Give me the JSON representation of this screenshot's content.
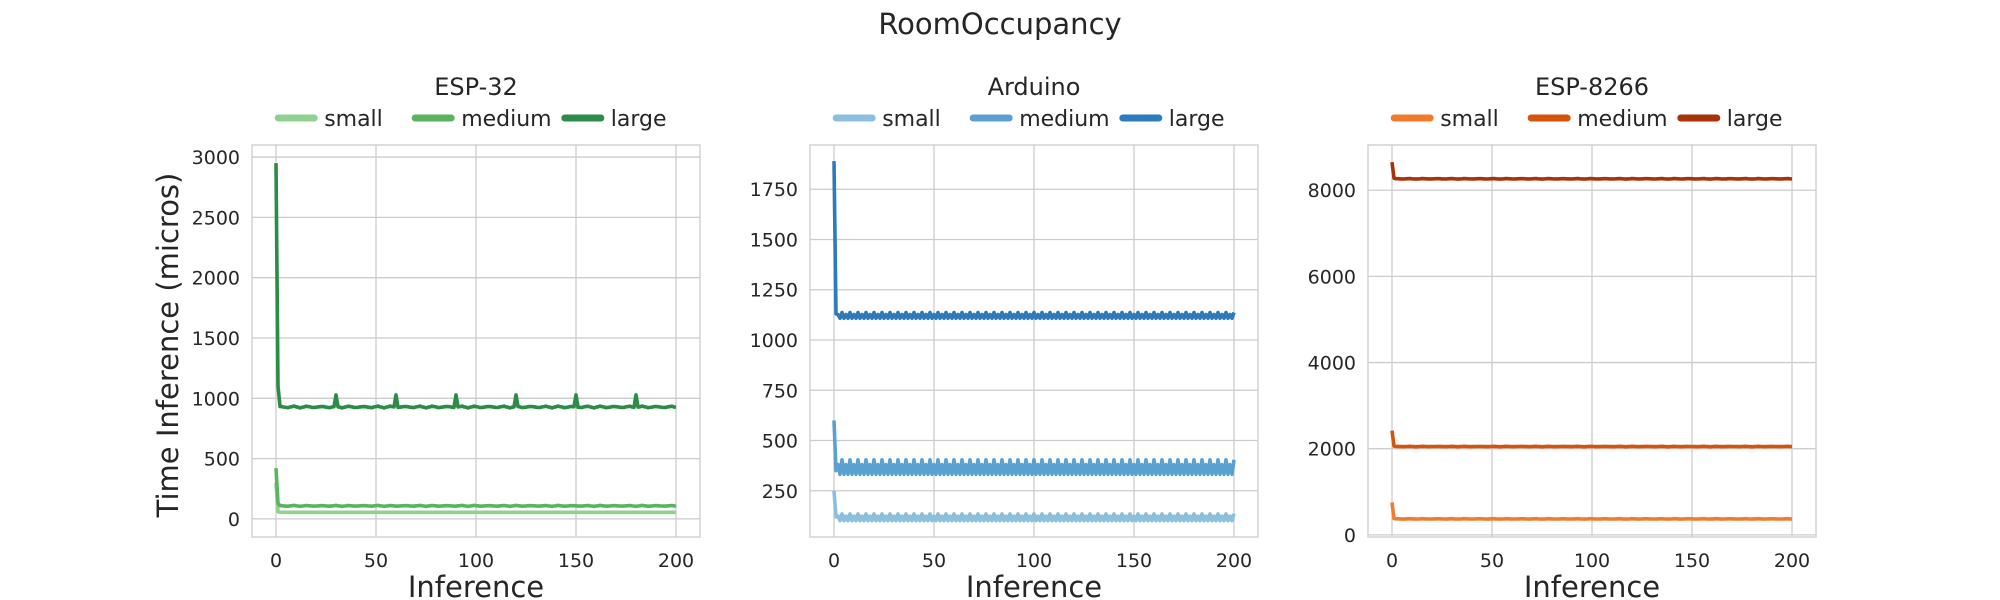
{
  "figure": {
    "suptitle": "RoomOccupancy",
    "ylabel": "Time Inference (micros)"
  },
  "chart_data": [
    {
      "type": "line",
      "title": "ESP-32",
      "xlabel": "Inference",
      "ylabel": "Time Inference (micros)",
      "xlim": [
        -12,
        212
      ],
      "ylim": [
        -150,
        3100
      ],
      "xticks": [
        0,
        50,
        100,
        150,
        200
      ],
      "yticks": [
        0,
        500,
        1000,
        1500,
        2000,
        2500,
        3000
      ],
      "grid": true,
      "legend": "top-center",
      "series": [
        {
          "name": "small",
          "color": "#8fd18f",
          "first": [
            300,
            60
          ],
          "base": 55,
          "amp": 0,
          "pattern": "flat",
          "spike_every": 0,
          "spike_height": 0
        },
        {
          "name": "medium",
          "color": "#5ab45f",
          "first": [
            420,
            130
          ],
          "base": 108,
          "amp": 4,
          "pattern": "wiggle",
          "spike_every": 0,
          "spike_height": 0
        },
        {
          "name": "large",
          "color": "#2a8c47",
          "first": [
            2950,
            1100
          ],
          "base": 928,
          "amp": 8,
          "pattern": "wiggle",
          "spike_every": 30,
          "spike_height": 100
        }
      ]
    },
    {
      "type": "line",
      "title": "Arduino",
      "xlabel": "Inference",
      "ylabel": "",
      "xlim": [
        -12,
        212
      ],
      "ylim": [
        20,
        1970
      ],
      "xticks": [
        0,
        50,
        100,
        150,
        200
      ],
      "yticks": [
        250,
        500,
        750,
        1000,
        1250,
        1500,
        1750
      ],
      "grid": true,
      "legend": "top-center",
      "series": [
        {
          "name": "small",
          "color": "#8bbfdf",
          "first": [
            250,
            120
          ],
          "base": 110,
          "amp": 14,
          "pattern": "zigzag",
          "spike_every": 0,
          "spike_height": 0
        },
        {
          "name": "medium",
          "color": "#5aa0d0",
          "first": [
            600,
            350
          ],
          "base": 350,
          "amp": 30,
          "pattern": "zigzag",
          "spike_every": 0,
          "spike_height": 0
        },
        {
          "name": "large",
          "color": "#2d7bbd",
          "first": [
            1890,
            1130
          ],
          "base": 1115,
          "amp": 12,
          "pattern": "zigzag",
          "spike_every": 0,
          "spike_height": 0
        }
      ]
    },
    {
      "type": "line",
      "title": "ESP-8266",
      "xlabel": "Inference",
      "ylabel": "",
      "xlim": [
        -12,
        212
      ],
      "ylim": [
        -50,
        9050
      ],
      "xticks": [
        0,
        50,
        100,
        150,
        200
      ],
      "yticks": [
        0,
        2000,
        4000,
        6000,
        8000
      ],
      "grid": true,
      "legend": "top-center",
      "series": [
        {
          "name": "small",
          "color": "#f07b2c",
          "first": [
            750,
            380
          ],
          "base": 370,
          "amp": 5,
          "pattern": "wiggle",
          "spike_every": 0,
          "spike_height": 0
        },
        {
          "name": "medium",
          "color": "#d6530d",
          "first": [
            2420,
            2060
          ],
          "base": 2050,
          "amp": 6,
          "pattern": "wiggle",
          "spike_every": 0,
          "spike_height": 0
        },
        {
          "name": "large",
          "color": "#a83309",
          "first": [
            8650,
            8280
          ],
          "base": 8265,
          "amp": 6,
          "pattern": "wiggle",
          "spike_every": 0,
          "spike_height": 0
        }
      ]
    }
  ]
}
